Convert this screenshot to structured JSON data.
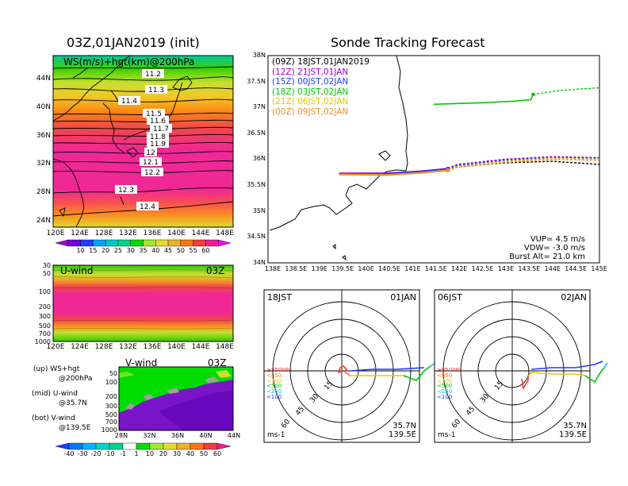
{
  "left_panel": {
    "title": "03Z,01JAN2019 (init)",
    "map_label": "WS(m/s)+hgt(km)@200hPa",
    "lat_labels": [
      "44N",
      "40N",
      "36N",
      "32N",
      "28N",
      "24N"
    ],
    "lon_labels": [
      "120E",
      "124E",
      "128E",
      "132E",
      "136E",
      "140E",
      "144E",
      "148E"
    ],
    "contour_labels": [
      "11.2",
      "11.3",
      "11.4",
      "11.5",
      "11.6",
      "11.7",
      "11.8",
      "11.9",
      "12",
      "12.1",
      "12.2",
      "12.3",
      "12.4"
    ],
    "ws_colorbar": {
      "ticks": [
        "10",
        "15",
        "20",
        "25",
        "30",
        "35",
        "40",
        "45",
        "50",
        "55",
        "60"
      ],
      "colors": [
        "#a000c8",
        "#6e00dc",
        "#1e3cff",
        "#00a0ff",
        "#00c8c8",
        "#00d28c",
        "#00dc00",
        "#a0e632",
        "#e6dc32",
        "#f0af28",
        "#fa7814",
        "#f03c3c",
        "#f01e96",
        "#ff00ff"
      ]
    },
    "uwind": {
      "label": "U-wind",
      "time": "03Z",
      "p_labels": [
        "30",
        "50",
        "100",
        "200",
        "300",
        "500",
        "700",
        "1000"
      ],
      "lon_labels": [
        "120E",
        "124E",
        "128E",
        "132E",
        "136E",
        "140E",
        "144E",
        "148E"
      ]
    },
    "vwind": {
      "label": "V-wind",
      "time": "03Z",
      "p_labels": [
        "50",
        "100",
        "200",
        "300",
        "500",
        "700",
        "1000"
      ],
      "lat_labels": [
        "28N",
        "32N",
        "36N",
        "40N",
        "44N"
      ]
    },
    "legend": {
      "up": "(up) WS+hgt",
      "up2": "@200hPa",
      "mid": "(mid) U-wind",
      "mid2": "@35.7N",
      "bot": "(bot) V-wind",
      "bot2": "@139.5E"
    },
    "v_colorbar": {
      "ticks": [
        "-40",
        "-30",
        "-20",
        "-10",
        "-1",
        "1",
        "10",
        "20",
        "30",
        "40",
        "50",
        "60"
      ],
      "colors": [
        "#1e3cff",
        "#0078ff",
        "#00b4ff",
        "#00d2d2",
        "#00d28c",
        "#ffffff",
        "#00dc00",
        "#a0e632",
        "#e6dc32",
        "#f0af28",
        "#fa7814",
        "#f03c3c",
        "#f01e96"
      ]
    }
  },
  "track_panel": {
    "title": "Sonde Tracking Forecast",
    "lat_labels": [
      "38N",
      "37.5N",
      "37N",
      "36.5N",
      "36N",
      "35.5N",
      "35N",
      "34.5N",
      "34N"
    ],
    "lon_labels": [
      "138E",
      "138.5E",
      "139E",
      "139.5E",
      "140E",
      "140.5E",
      "141E",
      "141.5E",
      "142E",
      "142.5E",
      "143E",
      "143.5E",
      "144E",
      "144.5E",
      "145E"
    ],
    "legend": [
      {
        "text": "(09Z) 18JST,01JAN2019",
        "color": "#000000"
      },
      {
        "text": "(12Z) 21JST,01JAN",
        "color": "#a000c8"
      },
      {
        "text": "(15Z) 00JST,02JAN",
        "color": "#1e3cff"
      },
      {
        "text": "(18Z) 03JST,02JAN",
        "color": "#00c800"
      },
      {
        "text": "(21Z) 06JST,02JAN",
        "color": "#e6c800"
      },
      {
        "text": "(00Z) 09JST,02JAN",
        "color": "#f08c28"
      }
    ],
    "params": [
      "VUP= 4.5 m/s",
      "VDW= -3.0 m/s",
      "Burst Alt= 21.0 km"
    ]
  },
  "chart_data": [
    {
      "type": "line",
      "title": "Sonde Tracking Forecast",
      "xlabel": "",
      "ylabel": "",
      "xlim": [
        138,
        145
      ],
      "ylim": [
        34,
        38
      ],
      "series": [
        {
          "name": "(09Z) 18JST,01JAN2019",
          "color": "#000000",
          "dashed_after": 141.95,
          "x": [
            139.5,
            140.5,
            141.2,
            141.8,
            142.0,
            143.0,
            144.0,
            145.0
          ],
          "y": [
            35.72,
            35.72,
            35.75,
            35.8,
            35.85,
            35.93,
            35.96,
            35.9
          ]
        },
        {
          "name": "(12Z) 21JST,01JAN",
          "color": "#a000c8",
          "dashed_after": 141.95,
          "x": [
            139.5,
            140.5,
            141.2,
            141.8,
            142.0,
            143.0,
            144.0,
            145.0
          ],
          "y": [
            35.73,
            35.73,
            35.77,
            35.82,
            35.9,
            36.0,
            36.05,
            36.03
          ]
        },
        {
          "name": "(15Z) 00JST,02JAN",
          "color": "#1e3cff",
          "dashed_after": 141.95,
          "x": [
            139.5,
            140.5,
            141.2,
            141.8,
            142.0,
            143.0,
            144.0,
            145.0
          ],
          "y": [
            35.72,
            35.72,
            35.76,
            35.81,
            35.88,
            35.98,
            36.03,
            36.02
          ]
        },
        {
          "name": "(18Z) 03JST,02JAN",
          "color": "#00c800",
          "dashed_after": 143.6,
          "x": [
            141.5,
            142.5,
            143.2,
            143.55,
            143.6,
            144.2,
            145.0
          ],
          "y": [
            37.06,
            37.09,
            37.12,
            37.15,
            37.25,
            37.33,
            37.38
          ]
        },
        {
          "name": "(21Z) 06JST,02JAN",
          "color": "#e6c800",
          "dashed_after": 141.95,
          "x": [
            139.5,
            140.5,
            141.2,
            141.8,
            142.0,
            143.0,
            144.0,
            145.0
          ],
          "y": [
            35.71,
            35.7,
            35.74,
            35.79,
            35.86,
            35.96,
            36.02,
            36.0
          ]
        },
        {
          "name": "(00Z) 09JST,02JAN",
          "color": "#f08c28",
          "dashed_after": 141.95,
          "x": [
            139.5,
            140.5,
            141.2,
            141.8,
            142.0,
            143.0,
            144.0,
            145.0
          ],
          "y": [
            35.7,
            35.69,
            35.73,
            35.78,
            35.84,
            35.94,
            36.0,
            35.98
          ]
        }
      ]
    }
  ],
  "polar_panels": [
    {
      "left": "18JST",
      "right": "01JAN",
      "pressure_labels": [
        {
          "text": "≥850hPa",
          "color": "#f03c3c"
        },
        {
          "text": "<850",
          "color": "#fa7814"
        },
        {
          "text": "<700",
          "color": "#e6c800"
        },
        {
          "text": "<500",
          "color": "#00c800"
        },
        {
          "text": "<250",
          "color": "#00c8ff"
        },
        {
          "text": "<100",
          "color": "#1e3cff"
        }
      ],
      "ring_labels": [
        "15",
        "30",
        "45",
        "60"
      ],
      "unit": "ms-1",
      "loc1": "35.7N",
      "loc2": "139.5E"
    },
    {
      "left": "06JST",
      "right": "02JAN",
      "pressure_labels": [
        {
          "text": "≥850hPa",
          "color": "#f03c3c"
        },
        {
          "text": "<850",
          "color": "#fa7814"
        },
        {
          "text": "<700",
          "color": "#e6c800"
        },
        {
          "text": "<500",
          "color": "#00c800"
        },
        {
          "text": "<250",
          "color": "#00c8ff"
        },
        {
          "text": "<100",
          "color": "#1e3cff"
        }
      ],
      "ring_labels": [
        "15",
        "30",
        "45",
        "60"
      ],
      "unit": "ms-1",
      "loc1": "35.7N",
      "loc2": "139.5E"
    }
  ]
}
